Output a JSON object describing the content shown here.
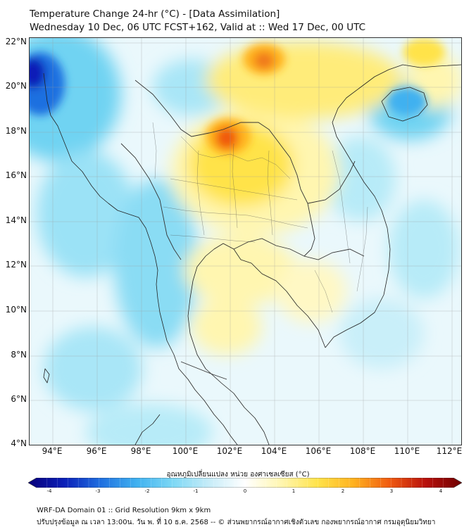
{
  "title_line1": "Temperature Change 24-hr (°C) - [Data Assimilation]",
  "title_line2": "Wednesday 10 Dec, 06 UTC FCST+162, Valid at :: Wed 17 Dec, 00 UTC",
  "lat_labels": [
    "22°N",
    "20°N",
    "18°N",
    "16°N",
    "14°N",
    "12°N",
    "10°N",
    "8°N",
    "6°N",
    "4°N"
  ],
  "lon_labels": [
    "94°E",
    "96°E",
    "98°E",
    "100°E",
    "102°E",
    "104°E",
    "106°E",
    "108°E",
    "110°E",
    "112°E"
  ],
  "colorbar": {
    "label": "อุณหภูมิเปลี่ยนแปลง หน่วย องศาเซลเซียส (°C)",
    "ticks": [
      "-4",
      "-3",
      "-2",
      "-1",
      "0",
      "1",
      "2",
      "3",
      "4"
    ],
    "min": -4,
    "max": 4,
    "colors": [
      "#08007a",
      "#0a1fb8",
      "#1f6fe0",
      "#3fb1f0",
      "#7dd8f5",
      "#c6ecf8",
      "#ffffff",
      "#fff6b0",
      "#ffe34a",
      "#ffb21f",
      "#f05a10",
      "#b8100c",
      "#6e0000"
    ]
  },
  "footer_line1": "WRF-DA Domain 01 :: Grid Resolution 9km x 9km",
  "footer_line2": "ปรับปรุงข้อมูล ณ เวลา 13:00น. วัน พ. ที่ 10 ธ.ค. 2568 -- © ส่วนพยากรณ์อากาศเชิงตัวเลข กองพยากรณ์อากาศ กรมอุตุนิยมวิทยา"
}
